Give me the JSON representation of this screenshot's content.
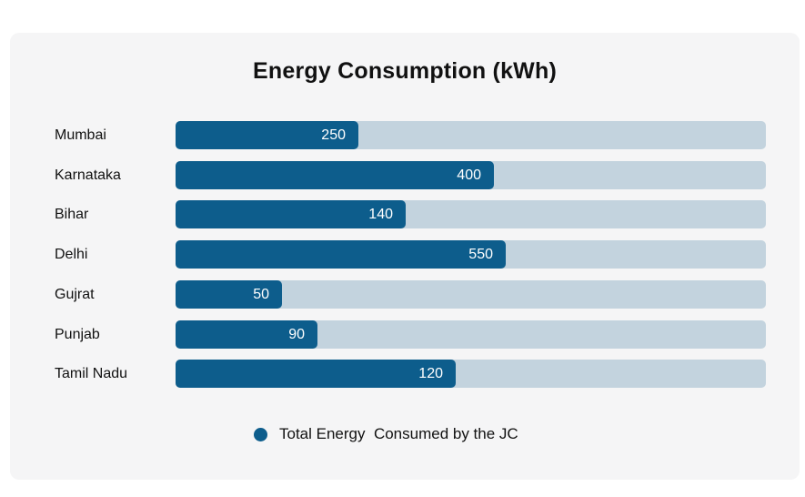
{
  "chart_data": {
    "type": "bar",
    "orientation": "horizontal",
    "title": "Energy Consumption (kWh)",
    "categories": [
      "Mumbai",
      "Karnataka",
      "Bihar",
      "Delhi",
      "Gujrat",
      "Punjab",
      "Tamil Nadu"
    ],
    "series": [
      {
        "name": "Total Energy  Consumed by the JC",
        "values": [
          250,
          400,
          140,
          550,
          50,
          90,
          120
        ],
        "fill_fraction": [
          0.31,
          0.54,
          0.39,
          0.56,
          0.18,
          0.24,
          0.475
        ]
      }
    ],
    "legend_position": "bottom",
    "grid": false,
    "colors": {
      "bar": "#0d5d8c",
      "track": "#c3d3de",
      "background": "#f5f5f6"
    }
  }
}
